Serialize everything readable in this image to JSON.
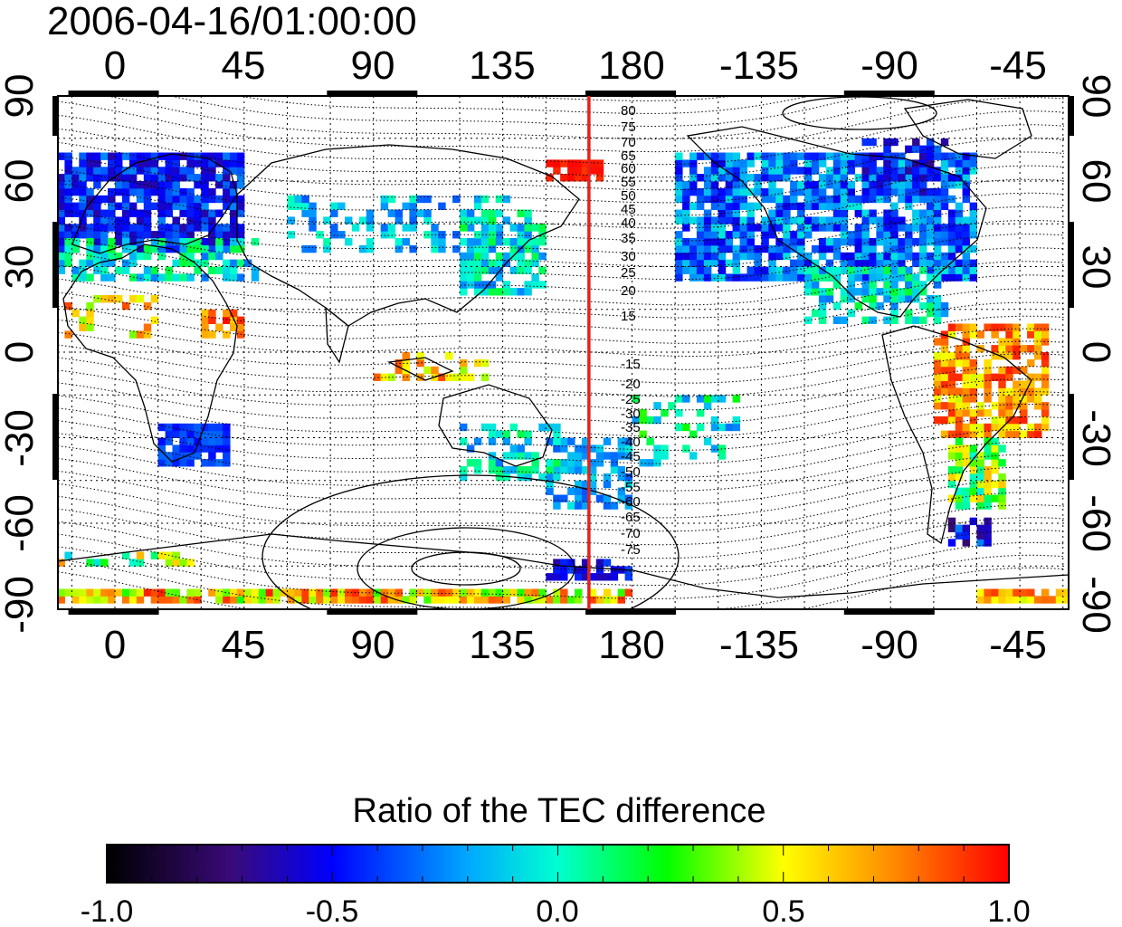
{
  "title": "2006-04-16/01:00:00",
  "map": {
    "lon_ticks": [
      "0",
      "45",
      "90",
      "135",
      "180",
      "-135",
      "-90",
      "-45"
    ],
    "lat_ticks_left": [
      "90",
      "60",
      "30",
      "0",
      "-30",
      "-60",
      "-90"
    ],
    "lat_ticks_right": [
      "90",
      "60",
      "30",
      "0",
      "-30",
      "-60",
      "-90"
    ],
    "dip_labels_north": [
      "80",
      "75",
      "70",
      "65",
      "60",
      "55",
      "50",
      "45",
      "40",
      "35",
      "30",
      "25",
      "20",
      "15"
    ],
    "dip_labels_south": [
      "-15",
      "-20",
      "-25",
      "-30",
      "-35",
      "-40",
      "-45",
      "-50",
      "-55",
      "-60",
      "-65",
      "-70",
      "-75"
    ],
    "meridian_line_lon": 165,
    "meridian_color": "#e8201c"
  },
  "colorbar": {
    "title": "Ratio of the TEC difference",
    "min": -1.0,
    "max": 1.0,
    "tick_labels": [
      "-1.0",
      "-0.5",
      "0.0",
      "0.5",
      "1.0"
    ]
  },
  "palette": [
    "#000000",
    "#3b0a78",
    "#0000ff",
    "#00e5ff",
    "#00ff00",
    "#ffff00",
    "#ff8000",
    "#ff0000"
  ]
}
